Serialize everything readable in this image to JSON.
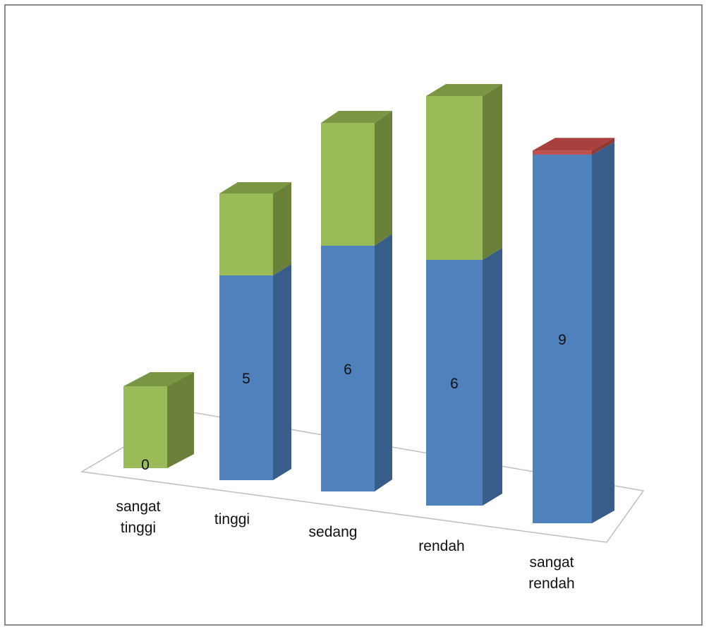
{
  "chart_data": {
    "type": "bar",
    "stacked": true,
    "three_d": true,
    "categories": [
      "sangat tinggi",
      "tinggi",
      "sedang",
      "rendah",
      "sangat rendah"
    ],
    "category_lines": [
      [
        "sangat",
        "tinggi"
      ],
      [
        "tinggi"
      ],
      [
        "sedang"
      ],
      [
        "rendah"
      ],
      [
        "sangat",
        "rendah"
      ]
    ],
    "series": [
      {
        "values": [
          0,
          5,
          6,
          6,
          9
        ],
        "data_labels": [
          "0",
          "5",
          "6",
          "6",
          "9"
        ]
      },
      {
        "values": [
          2,
          2,
          3,
          4,
          0
        ]
      },
      {
        "values": [
          0,
          0,
          0,
          0,
          0.1
        ]
      }
    ],
    "ylim": [
      0,
      10
    ],
    "legend": "none",
    "grid": false,
    "colors": {
      "series_front": [
        "#4f81bd",
        "#9bbb59",
        "#c0504d"
      ],
      "series_side": [
        "#385d8a",
        "#6b8139",
        "#8e3936"
      ],
      "series_top": [
        "#5c8ed0",
        "#7a9642",
        "#a8403d"
      ],
      "floor": "#bfbfbf",
      "frame": "#8c8c8c"
    }
  }
}
